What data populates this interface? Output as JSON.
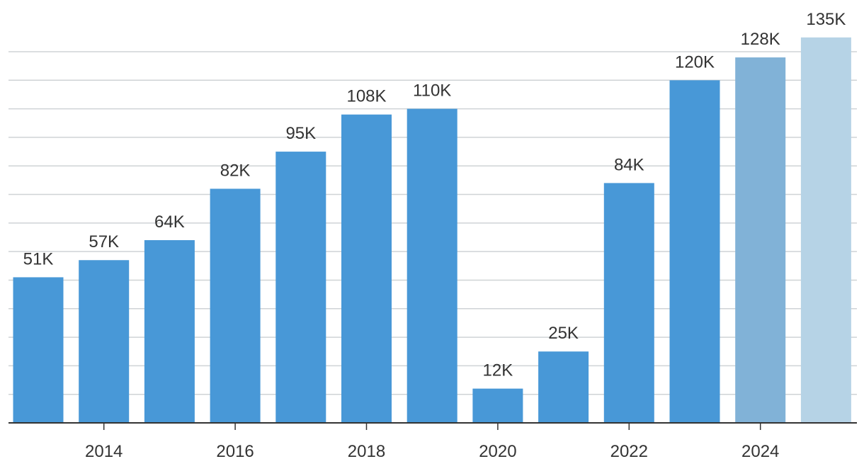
{
  "chart_data": {
    "type": "bar",
    "title": "",
    "xlabel": "",
    "ylabel": "",
    "categories": [
      "2013",
      "2014",
      "2015",
      "2016",
      "2017",
      "2018",
      "2019",
      "2020",
      "2021",
      "2022",
      "2023",
      "2024",
      "2025"
    ],
    "values": [
      51,
      57,
      64,
      82,
      95,
      108,
      110,
      12,
      25,
      84,
      120,
      128,
      135
    ],
    "data_labels": [
      "51K",
      "57K",
      "64K",
      "82K",
      "95K",
      "108K",
      "110K",
      "12K",
      "25K",
      "84K",
      "120K",
      "128K",
      "135K"
    ],
    "bar_colors": [
      "#4898d7",
      "#4898d7",
      "#4898d7",
      "#4898d7",
      "#4898d7",
      "#4898d7",
      "#4898d7",
      "#4898d7",
      "#4898d7",
      "#4898d7",
      "#4898d7",
      "#81b2d7",
      "#b6d3e6"
    ],
    "x_tick_labels": [
      {
        "category": "2014",
        "label": "2014"
      },
      {
        "category": "2016",
        "label": "2016"
      },
      {
        "category": "2018",
        "label": "2018"
      },
      {
        "category": "2020",
        "label": "2020"
      },
      {
        "category": "2022",
        "label": "2022"
      },
      {
        "category": "2024",
        "label": "2024"
      }
    ],
    "ylim": [
      0,
      130
    ],
    "gridline_step": 10,
    "grid": true,
    "legend": "none"
  }
}
